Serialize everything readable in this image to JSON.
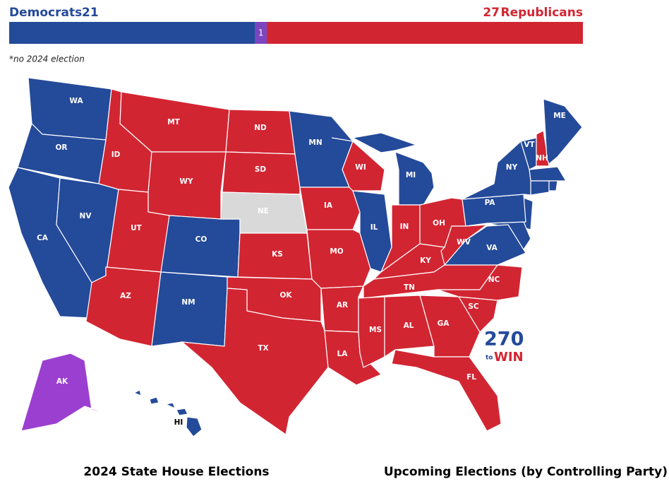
{
  "header": {
    "dem_label": "Democrats",
    "rep_label": "Republicans",
    "note": "*no 2024 election"
  },
  "bar": {
    "segments": [
      {
        "value": 21,
        "color": "#244a9a"
      },
      {
        "value": 1,
        "color": "#7b45c0"
      },
      {
        "value": 27,
        "color": "#d22532"
      }
    ]
  },
  "states": [
    {
      "label": "WA",
      "color": "#244a9a"
    },
    {
      "label": "OR",
      "color": "#244a9a"
    },
    {
      "label": "CA",
      "color": "#244a9a"
    },
    {
      "label": "NV",
      "color": "#244a9a"
    },
    {
      "label": "ID",
      "color": "#d22532"
    },
    {
      "label": "MT",
      "color": "#d22532"
    },
    {
      "label": "WY",
      "color": "#d22532"
    },
    {
      "label": "UT",
      "color": "#d22532"
    },
    {
      "label": "AZ",
      "color": "#d22532"
    },
    {
      "label": "CO",
      "color": "#244a9a"
    },
    {
      "label": "NM",
      "color": "#244a9a"
    },
    {
      "label": "ND",
      "color": "#d22532"
    },
    {
      "label": "SD",
      "color": "#d22532"
    },
    {
      "label": "NE",
      "color": "#d9d9d9"
    },
    {
      "label": "KS",
      "color": "#d22532"
    },
    {
      "label": "OK",
      "color": "#d22532"
    },
    {
      "label": "TX",
      "color": "#d22532"
    },
    {
      "label": "MN",
      "color": "#244a9a"
    },
    {
      "label": "IA",
      "color": "#d22532"
    },
    {
      "label": "MO",
      "color": "#d22532"
    },
    {
      "label": "AR",
      "color": "#d22532"
    },
    {
      "label": "LA",
      "color": "#d22532"
    },
    {
      "label": "WI",
      "color": "#d22532"
    },
    {
      "label": "IL",
      "color": "#244a9a"
    },
    {
      "label": "MI",
      "color": "#244a9a"
    },
    {
      "label": "IN",
      "color": "#d22532"
    },
    {
      "label": "OH",
      "color": "#d22532"
    },
    {
      "label": "KY",
      "color": "#d22532"
    },
    {
      "label": "TN",
      "color": "#d22532"
    },
    {
      "label": "MS",
      "color": "#d22532"
    },
    {
      "label": "AL",
      "color": "#d22532"
    },
    {
      "label": "GA",
      "color": "#d22532"
    },
    {
      "label": "FL",
      "color": "#d22532"
    },
    {
      "label": "SC",
      "color": "#d22532"
    },
    {
      "label": "NC",
      "color": "#d22532"
    },
    {
      "label": "VA",
      "color": "#244a9a"
    },
    {
      "label": "WV",
      "color": "#d22532"
    },
    {
      "label": "PA",
      "color": "#244a9a"
    },
    {
      "label": "NY",
      "color": "#244a9a"
    },
    {
      "label": "VT",
      "color": "#244a9a"
    },
    {
      "label": "NH",
      "color": "#d22532"
    },
    {
      "label": "ME",
      "color": "#244a9a"
    },
    {
      "label": "AK",
      "color": "#9b3fd0"
    },
    {
      "label": "HI",
      "color": "#244a9a"
    }
  ],
  "logo": {
    "number": "270",
    "small": "to",
    "word": "WIN"
  },
  "footer": {
    "left": "2024 State House Elections",
    "right": "Upcoming Elections (by Controlling Party)"
  }
}
